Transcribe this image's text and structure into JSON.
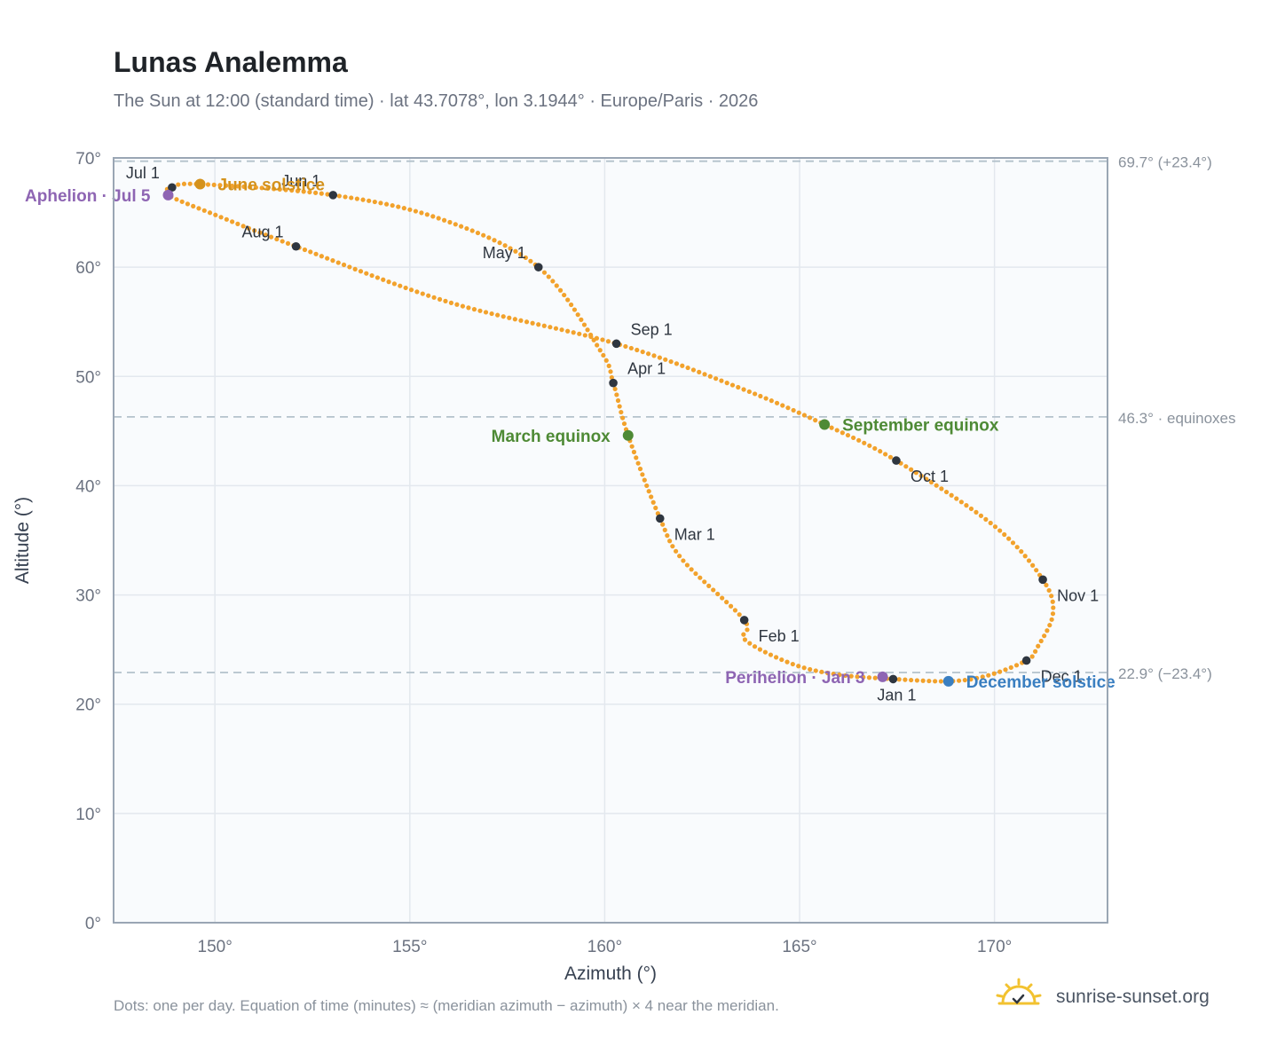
{
  "header": {
    "title": "Lunas Analemma",
    "subtitle": "The Sun at 12:00 (standard time) · lat 43.7078°, lon 3.1944° · Europe/Paris · 2026"
  },
  "footer": {
    "note": "Dots: one per day. Equation of time (minutes) ≈ (meridian azimuth − azimuth) × 4 near the meridian.",
    "brand": "sunrise-sunset.org"
  },
  "colors": {
    "path": "#f2a22c",
    "month_marker": "#2f3640",
    "solstice_june": "#d4921c",
    "solstice_december": "#3a7fc1",
    "equinox": "#4e8a35",
    "apsis": "#8e65b3",
    "plot_bg": "#f9fbfd",
    "grid": "#e3e8ee",
    "frame": "#9aa6b4",
    "ref_line": "#b4c2cc"
  },
  "chart_data": {
    "type": "scatter",
    "title": "Lunas Analemma",
    "xlabel": "Azimuth (°)",
    "ylabel": "Altitude (°)",
    "xlim": [
      147.4,
      172.9
    ],
    "ylim": [
      0,
      70
    ],
    "xticks": [
      150,
      155,
      160,
      165,
      170
    ],
    "yticks": [
      0,
      10,
      20,
      30,
      40,
      50,
      60,
      70
    ],
    "x_tick_labels": [
      "150°",
      "155°",
      "160°",
      "165°",
      "170°"
    ],
    "y_tick_labels": [
      "0°",
      "10°",
      "20°",
      "30°",
      "40°",
      "50°",
      "60°",
      "70°"
    ],
    "grid": true,
    "reference_lines": [
      {
        "y": 69.7,
        "label": "69.7° (+23.4°)"
      },
      {
        "y": 46.3,
        "label": "46.3° · equinoxes"
      },
      {
        "y": 22.9,
        "label": "22.9° (−23.4°)"
      }
    ],
    "daily_path_anchors": [
      {
        "x": 167.4,
        "y": 22.3
      },
      {
        "x": 166.0,
        "y": 22.7
      },
      {
        "x": 164.8,
        "y": 23.7
      },
      {
        "x": 163.6,
        "y": 25.9
      },
      {
        "x": 163.58,
        "y": 27.7
      },
      {
        "x": 162.0,
        "y": 33.2
      },
      {
        "x": 161.42,
        "y": 37.0
      },
      {
        "x": 160.6,
        "y": 44.6
      },
      {
        "x": 160.22,
        "y": 49.4
      },
      {
        "x": 159.9,
        "y": 52.3
      },
      {
        "x": 158.3,
        "y": 60.0
      },
      {
        "x": 155.8,
        "y": 64.4
      },
      {
        "x": 153.03,
        "y": 66.6
      },
      {
        "x": 149.62,
        "y": 67.6
      },
      {
        "x": 148.9,
        "y": 67.3
      },
      {
        "x": 148.8,
        "y": 66.6
      },
      {
        "x": 150.0,
        "y": 64.8
      },
      {
        "x": 152.08,
        "y": 61.9
      },
      {
        "x": 156.0,
        "y": 56.8
      },
      {
        "x": 160.3,
        "y": 53.0
      },
      {
        "x": 163.5,
        "y": 48.9
      },
      {
        "x": 165.64,
        "y": 45.6
      },
      {
        "x": 167.48,
        "y": 42.3
      },
      {
        "x": 170.0,
        "y": 36.3
      },
      {
        "x": 171.24,
        "y": 31.4
      },
      {
        "x": 171.5,
        "y": 28.3
      },
      {
        "x": 171.1,
        "y": 25.2
      },
      {
        "x": 170.82,
        "y": 24.0
      },
      {
        "x": 169.8,
        "y": 22.6
      },
      {
        "x": 168.82,
        "y": 22.1
      },
      {
        "x": 167.4,
        "y": 22.3
      }
    ],
    "month_markers": [
      {
        "label": "Jan 1",
        "x": 167.4,
        "y": 22.3,
        "pos": "below"
      },
      {
        "label": "Feb 1",
        "x": 163.58,
        "y": 27.7,
        "pos": "below-right"
      },
      {
        "label": "Mar 1",
        "x": 161.42,
        "y": 37.0,
        "pos": "below-right"
      },
      {
        "label": "Apr 1",
        "x": 160.22,
        "y": 49.4,
        "pos": "above-right"
      },
      {
        "label": "May 1",
        "x": 158.3,
        "y": 60.0,
        "pos": "above-left"
      },
      {
        "label": "Jun 1",
        "x": 153.03,
        "y": 66.6,
        "pos": "above-left"
      },
      {
        "label": "Jul 1",
        "x": 148.9,
        "y": 67.3,
        "pos": "above-left"
      },
      {
        "label": "Aug 1",
        "x": 152.08,
        "y": 61.9,
        "pos": "above-left"
      },
      {
        "label": "Sep 1",
        "x": 160.3,
        "y": 53.0,
        "pos": "above-right"
      },
      {
        "label": "Oct 1",
        "x": 167.48,
        "y": 42.3,
        "pos": "below-right"
      },
      {
        "label": "Nov 1",
        "x": 171.24,
        "y": 31.4,
        "pos": "below-right"
      },
      {
        "label": "Dec 1",
        "x": 170.82,
        "y": 24.0,
        "pos": "below-right"
      }
    ],
    "events": [
      {
        "label": "June solstice",
        "x": 149.62,
        "y": 67.6,
        "color": "#d4921c",
        "side": "right"
      },
      {
        "label": "December solstice",
        "x": 168.82,
        "y": 22.1,
        "color": "#3a7fc1",
        "side": "right"
      },
      {
        "label": "March equinox",
        "x": 160.6,
        "y": 44.6,
        "color": "#4e8a35",
        "side": "left"
      },
      {
        "label": "September equinox",
        "x": 165.64,
        "y": 45.6,
        "color": "#4e8a35",
        "side": "right"
      },
      {
        "label": "Aphelion · Jul 5",
        "x": 148.8,
        "y": 66.6,
        "color": "#8e65b3",
        "side": "left"
      },
      {
        "label": "Perihelion · Jan 3",
        "x": 167.13,
        "y": 22.5,
        "color": "#8e65b3",
        "side": "left"
      }
    ]
  }
}
